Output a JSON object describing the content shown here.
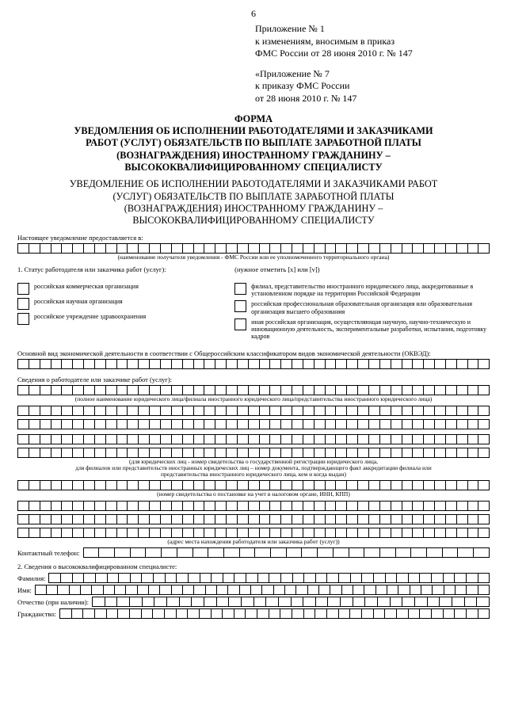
{
  "page_number": "6",
  "appendix1": {
    "line1": "Приложение № 1",
    "line2": "к изменениям, вносимым в приказ",
    "line3": "ФМС России от 28 июня 2010 г. № 147"
  },
  "appendix2": {
    "line1": "«Приложение № 7",
    "line2": "к приказу ФМС России",
    "line3": "от 28 июня 2010 г. № 147"
  },
  "title_bold": {
    "l1": "ФОРМА",
    "l2": "УВЕДОМЛЕНИЯ ОБ ИСПОЛНЕНИИ РАБОТОДАТЕЛЯМИ И ЗАКАЗЧИКАМИ",
    "l3": "РАБОТ (УСЛУГ) ОБЯЗАТЕЛЬСТВ ПО ВЫПЛАТЕ ЗАРАБОТНОЙ ПЛАТЫ",
    "l4": "(ВОЗНАГРАЖДЕНИЯ) ИНОСТРАННОМУ ГРАЖДАНИНУ –",
    "l5": "ВЫСОКОКВАЛИФИЦИРОВАННОМУ СПЕЦИАЛИСТУ"
  },
  "title_norm": {
    "l1": "УВЕДОМЛЕНИЕ ОБ ИСПОЛНЕНИИ РАБОТОДАТЕЛЯМИ И ЗАКАЗЧИКАМИ РАБОТ",
    "l2": "(УСЛУГ) ОБЯЗАТЕЛЬСТВ ПО ВЫПЛАТЕ ЗАРАБОТНОЙ ПЛАТЫ",
    "l3": "(ВОЗНАГРАЖДЕНИЯ) ИНОСТРАННОМУ ГРАЖДАНИНУ –",
    "l4": "ВЫСОКОКВАЛИФИЦИРОВАННОМУ СПЕЦИАЛИСТУ"
  },
  "intro_label": "Настоящее уведомление предоставляется в:",
  "caption_recipient": "(наименование получателя уведомления - ФМС России или ее уполномоченного территориального органа)",
  "section1_label": "1. Статус работодателя или заказчика работ (услуг):",
  "check_hint": "(нужное отметить [x] или [v])",
  "left_checks": [
    "российская коммерческая организация",
    "российская научная организация",
    "российское учреждение здравоохранения"
  ],
  "right_checks": [
    "филиал, представительство иностранного юридического лица, аккредитованные в установленном порядке на территории Российской Федерации",
    "российская профессиональная образовательная организация или образовательная организация высшего образования",
    "иная российская организация, осуществляющая научную, научно-техническую и инновационную деятельность, экспериментальные разработки, испытания, подготовку кадров"
  ],
  "okved_label": "Основной вид экономической деятельности в соответствии с Общероссийским классификатором видов экономической деятельности (ОКВЭД):",
  "employer_info_label": "Сведения о работодателе или заказчике работ (услуг):",
  "caption_fullname": "(полное наименование юридического лица/филиала иностранного юридического лица/представительства иностранного юридического лица)",
  "caption_reg": "(для юридических лиц - номер свидетельства о государственной регистрации юридического лица,\nдля филиалов или представительств иностранных юридических лиц – номер документа, подтверждающего факт аккредитации филиала или\nпредставительства иностранного юридического лица, кем и когда выдан)",
  "caption_tax": "(номер свидетельства о постановке на учет в налоговом органе, ИНН, КПП)",
  "caption_addr": "(адрес места нахождения работодателя или заказчика работ (услуг))",
  "phone_label": "Контактный телефон:",
  "section2_label": "2. Сведения о высококвалифицированном специалисте:",
  "fam_label": "Фамилия:",
  "name_label": "Имя:",
  "patr_label": "Отчество (при наличии):",
  "citiz_label": "Гражданство:",
  "cells_per_row": 43,
  "row_configs": {
    "intro": 43,
    "okved": 43,
    "employer_block1": 43,
    "phone": 26,
    "surname": 38,
    "name": 40,
    "patronymic": 32,
    "citizenship": 37
  }
}
